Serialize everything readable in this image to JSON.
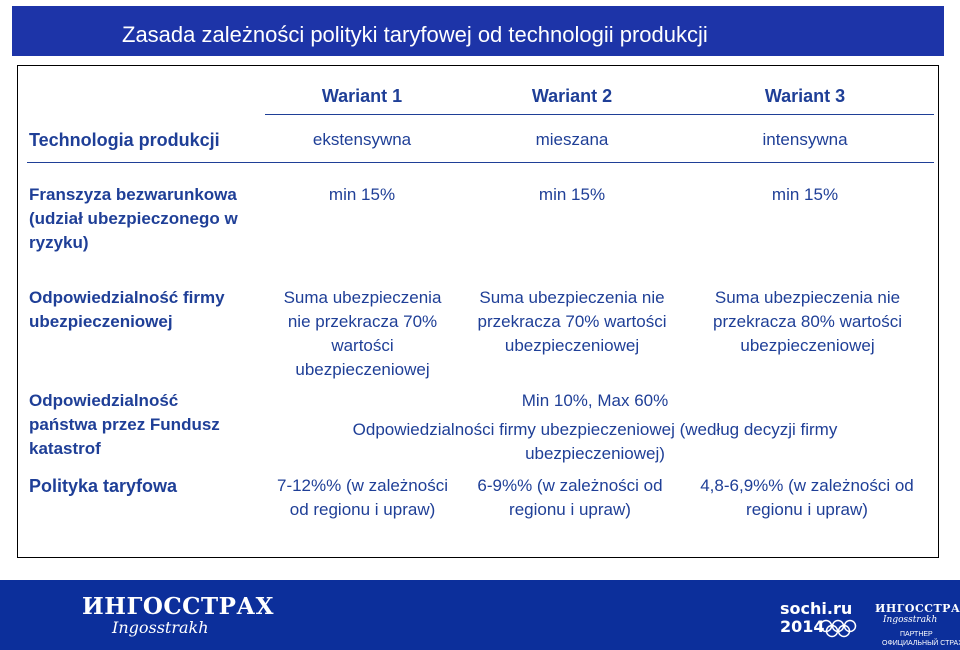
{
  "title": "Zasada zależności polityki taryfowej od technologii produkcji",
  "table": {
    "headers": [
      "Wariant 1",
      "Wariant 2",
      "Wariant 3"
    ],
    "rows": {
      "technologia": {
        "label": "Technologia produkcji",
        "v1": "ekstensywna",
        "v2": "mieszana",
        "v3": "intensywna"
      },
      "franszyza": {
        "label": "Franszyza bezwarunkowa (udział ubezpieczonego w ryzyku)",
        "v1": "min 15%",
        "v2": "min 15%",
        "v3": "min 15%"
      },
      "odp_firmy": {
        "label": "Odpowiedzialność firmy ubezpieczeniowej",
        "v1": "Suma ubezpieczenia nie przekracza 70% wartości ubezpieczeniowej",
        "v2": "Suma ubezpieczenia nie przekracza 70% wartości ubezpieczeniowej",
        "v3": "Suma ubezpieczenia nie przekracza 80% wartości ubezpieczeniowej"
      },
      "odp_panstwa": {
        "label": "Odpowiedzialność państwa przez Fundusz katastrof",
        "line1": "Min 10%,  Max 60%",
        "line2": "Odpowiedzialności firmy ubezpieczeniowej (według decyzji firmy ubezpieczeniowej)"
      },
      "polityka": {
        "label": "Polityka taryfowa",
        "v1": "7-12%% (w zależności od regionu i upraw)",
        "v2": "6-9%% (w zależności od regionu i upraw)",
        "v3": "4,8-6,9%% (w zależności od regionu i upraw)"
      }
    }
  },
  "footer": {
    "logo_ru": "ИНГОССТРАХ",
    "logo_en": "Ingosstrakh",
    "sochi": "sochi.ru 2014",
    "partner_line1": "ПАРТНЕР",
    "partner_line2": "ОФИЦИАЛЬНЫЙ СТРАХОВЩИК"
  }
}
